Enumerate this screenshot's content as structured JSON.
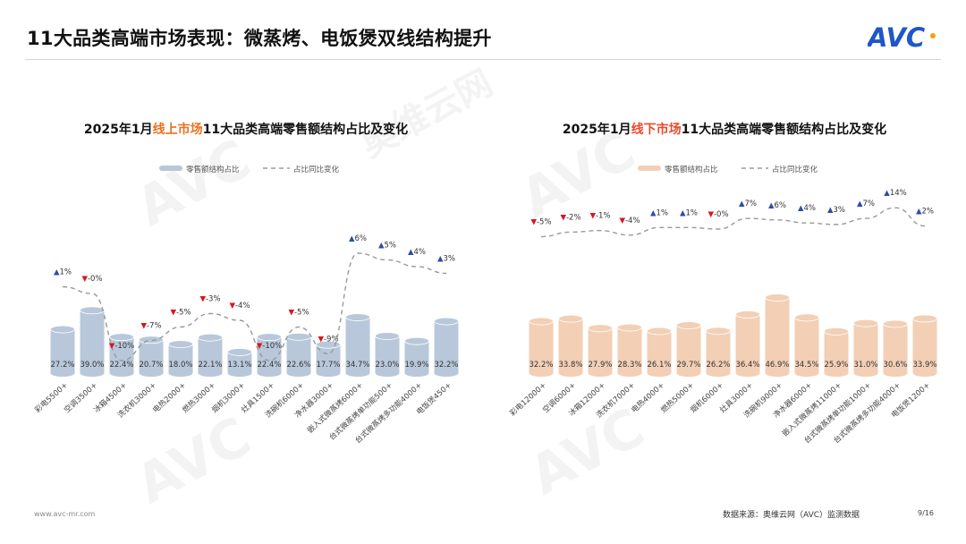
{
  "header": {
    "title": "11大品类高端市场表现：微蒸烤、电饭煲双线结构提升",
    "logo_text": "AVC"
  },
  "watermark": {
    "text": "AVC",
    "brand": "奥维云网",
    "sub": "ALL VIEW CLOUD"
  },
  "colors": {
    "online_bar": "#b8c8da",
    "offline_bar": "#f2cfb5",
    "highlight_online": "#e8731f",
    "highlight_offline": "#e84a2c",
    "up": "#2a4ea8",
    "down": "#d6171e",
    "logo": "#1f57c8",
    "logo_dot": "#f5a012"
  },
  "chart_data": [
    {
      "type": "bar",
      "title_prefix": "2025年1月",
      "title_highlight": "线上市场",
      "title_suffix": "11大品类高端零售额结构占比及变化",
      "legend": {
        "bar": "零售额结构占比",
        "line": "占比同比变化",
        "placement": "top"
      },
      "categories": [
        "彩电5500+",
        "空调3500+",
        "冰箱4500+",
        "洗衣机3000+",
        "电热2000+",
        "燃热3000+",
        "烟机3000+",
        "灶具1500+",
        "洗碗机6000+",
        "净水器3000+",
        "嵌入式微蒸烤6000+",
        "台式微蒸烤单功能500+",
        "台式微蒸烤多功能4000+",
        "电饭煲450+"
      ],
      "series": [
        {
          "name": "零售额结构占比",
          "values": [
            27.2,
            39.0,
            22.4,
            20.7,
            18.0,
            22.1,
            13.1,
            22.4,
            22.6,
            17.7,
            34.7,
            23.0,
            19.9,
            32.2
          ],
          "labels": [
            "27.2%",
            "39.0%",
            "22.4%",
            "20.7%",
            "18.0%",
            "22.1%",
            "13.1%",
            "22.4%",
            "22.6%",
            "17.7%",
            "34.7%",
            "23.0%",
            "19.9%",
            "32.2%"
          ]
        },
        {
          "name": "占比同比变化",
          "values": [
            1,
            0,
            -10,
            -7,
            -5,
            -3,
            -4,
            -10,
            -5,
            -9,
            6,
            5,
            4,
            3
          ],
          "labels": [
            "▲1%",
            "▼-0%",
            "▼-10%",
            "▼-7%",
            "▼-5%",
            "▼-3%",
            "▼-4%",
            "▼-10%",
            "▼-5%",
            "▼-9%",
            "▲6%",
            "▲5%",
            "▲4%",
            "▲3%"
          ]
        }
      ]
    },
    {
      "type": "bar",
      "title_prefix": "2025年1月",
      "title_highlight": "线下市场",
      "title_suffix": "11大品类高端零售额结构占比及变化",
      "legend": {
        "bar": "零售额结构占比",
        "line": "占比同比变化",
        "placement": "top"
      },
      "categories": [
        "彩电12000+",
        "空调6000+",
        "冰箱12000+",
        "洗衣机7000+",
        "电热4000+",
        "燃热5000+",
        "烟机6000+",
        "灶具3000+",
        "洗碗机9000+",
        "净水器6000+",
        "嵌入式微蒸烤11000+",
        "台式微蒸烤单功能1000+",
        "台式微蒸烤多功能4000+",
        "电饭煲1200+"
      ],
      "series": [
        {
          "name": "零售额结构占比",
          "values": [
            32.2,
            33.8,
            27.9,
            28.3,
            26.1,
            29.7,
            26.2,
            36.4,
            46.9,
            34.5,
            25.9,
            31.0,
            30.6,
            33.9
          ],
          "labels": [
            "32.2%",
            "33.8%",
            "27.9%",
            "28.3%",
            "26.1%",
            "29.7%",
            "26.2%",
            "36.4%",
            "46.9%",
            "34.5%",
            "25.9%",
            "31.0%",
            "30.6%",
            "33.9%"
          ]
        },
        {
          "name": "占比同比变化",
          "values": [
            -5,
            -2,
            -1,
            -4,
            1,
            1,
            0,
            7,
            6,
            4,
            3,
            7,
            14,
            2
          ],
          "labels": [
            "▼-5%",
            "▼-2%",
            "▼-1%",
            "▼-4%",
            "▲1%",
            "▲1%",
            "▼-0%",
            "▲7%",
            "▲6%",
            "▲4%",
            "▲3%",
            "▲7%",
            "▲14%",
            "▲2%"
          ]
        }
      ]
    }
  ],
  "footer": {
    "url": "www.avc-mr.com",
    "source": "数据来源：奥维云网（AVC）监测数据",
    "page": "9/16"
  }
}
